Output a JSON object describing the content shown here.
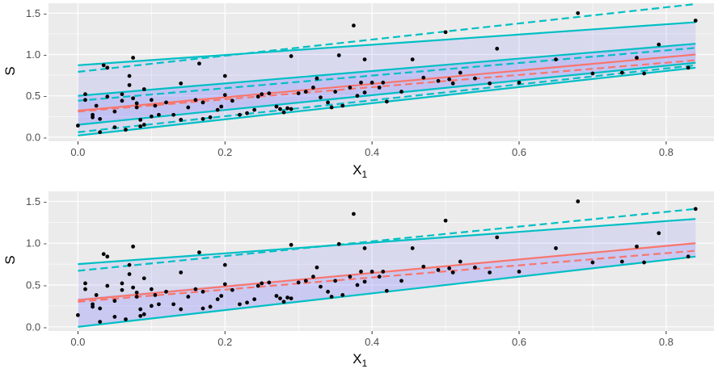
{
  "chart_data": [
    {
      "type": "scatter",
      "title": "",
      "xlabel": "X",
      "xlabel_subscript": "1",
      "ylabel": "S",
      "xlim": [
        -0.04,
        0.865
      ],
      "ylim": [
        -0.05,
        1.62
      ],
      "xticks": [
        0.0,
        0.2,
        0.4,
        0.6,
        0.8
      ],
      "xtick_labels": [
        "0.0",
        "0.2",
        "0.4",
        "0.6",
        "0.8"
      ],
      "yticks": [
        0.0,
        0.5,
        1.0,
        1.5
      ],
      "ytick_labels": [
        "0.0 -",
        "0.5 -",
        "1.0 -",
        "1.5 -"
      ],
      "grid": true,
      "colors": {
        "panel": "#ebebeb",
        "grid": "#ffffff",
        "points": "#000000",
        "fit_line": "#f8766d",
        "band_line": "#00bfc4",
        "band_fill": "#8a8aff"
      },
      "bands": [
        {
          "lower": [
            0.15,
            0.9
          ],
          "upper": [
            0.5,
            1.13
          ],
          "opacity": 0.28
        },
        {
          "lower": [
            0.02,
            0.84
          ],
          "upper": [
            0.87,
            1.39
          ],
          "opacity": 0.18
        }
      ],
      "series": [
        {
          "style": "solid",
          "color": "#00bfc4",
          "x": [
            0,
            0.84
          ],
          "y": [
            0.02,
            0.84
          ]
        },
        {
          "style": "solid",
          "color": "#00bfc4",
          "x": [
            0,
            0.84
          ],
          "y": [
            0.15,
            0.9
          ]
        },
        {
          "style": "solid",
          "color": "#00bfc4",
          "x": [
            0,
            0.84
          ],
          "y": [
            0.5,
            1.13
          ]
        },
        {
          "style": "solid",
          "color": "#00bfc4",
          "x": [
            0,
            0.84
          ],
          "y": [
            0.87,
            1.39
          ]
        },
        {
          "style": "dashed",
          "color": "#00bfc4",
          "x": [
            0,
            0.84
          ],
          "y": [
            0.06,
            0.87
          ]
        },
        {
          "style": "dashed",
          "color": "#00bfc4",
          "x": [
            0,
            0.84
          ],
          "y": [
            0.44,
            1.08
          ]
        },
        {
          "style": "dashed",
          "color": "#00bfc4",
          "x": [
            0,
            0.84
          ],
          "y": [
            0.79,
            1.61
          ]
        },
        {
          "style": "solid",
          "color": "#f8766d",
          "x": [
            0,
            0.84
          ],
          "y": [
            0.32,
            1.0
          ]
        },
        {
          "style": "dashed",
          "color": "#f8766d",
          "x": [
            0,
            0.84
          ],
          "y": [
            0.31,
            0.93
          ]
        }
      ],
      "points": [
        [
          0.0,
          0.14
        ],
        [
          0.01,
          0.45
        ],
        [
          0.01,
          0.52
        ],
        [
          0.02,
          0.24
        ],
        [
          0.02,
          0.27
        ],
        [
          0.03,
          0.06
        ],
        [
          0.025,
          0.38
        ],
        [
          0.03,
          0.22
        ],
        [
          0.035,
          0.87
        ],
        [
          0.04,
          0.84
        ],
        [
          0.04,
          0.49
        ],
        [
          0.05,
          0.31
        ],
        [
          0.05,
          0.12
        ],
        [
          0.06,
          0.44
        ],
        [
          0.06,
          0.52
        ],
        [
          0.065,
          0.09
        ],
        [
          0.07,
          0.74
        ],
        [
          0.07,
          0.63
        ],
        [
          0.075,
          0.96
        ],
        [
          0.075,
          0.47
        ],
        [
          0.08,
          0.41
        ],
        [
          0.08,
          0.36
        ],
        [
          0.085,
          0.21
        ],
        [
          0.09,
          0.58
        ],
        [
          0.085,
          0.13
        ],
        [
          0.09,
          0.15
        ],
        [
          0.1,
          0.45
        ],
        [
          0.1,
          0.25
        ],
        [
          0.105,
          0.38
        ],
        [
          0.11,
          0.27
        ],
        [
          0.12,
          0.42
        ],
        [
          0.13,
          0.27
        ],
        [
          0.14,
          0.21
        ],
        [
          0.14,
          0.65
        ],
        [
          0.15,
          0.36
        ],
        [
          0.16,
          0.45
        ],
        [
          0.165,
          0.89
        ],
        [
          0.17,
          0.22
        ],
        [
          0.17,
          0.42
        ],
        [
          0.18,
          0.24
        ],
        [
          0.19,
          0.33
        ],
        [
          0.195,
          0.37
        ],
        [
          0.2,
          0.51
        ],
        [
          0.2,
          0.74
        ],
        [
          0.21,
          0.44
        ],
        [
          0.22,
          0.27
        ],
        [
          0.23,
          0.29
        ],
        [
          0.24,
          0.33
        ],
        [
          0.245,
          0.49
        ],
        [
          0.25,
          0.52
        ],
        [
          0.26,
          0.53
        ],
        [
          0.27,
          0.37
        ],
        [
          0.275,
          0.34
        ],
        [
          0.28,
          0.3
        ],
        [
          0.285,
          0.35
        ],
        [
          0.29,
          0.34
        ],
        [
          0.29,
          0.98
        ],
        [
          0.3,
          0.53
        ],
        [
          0.31,
          0.55
        ],
        [
          0.32,
          0.6
        ],
        [
          0.325,
          0.71
        ],
        [
          0.33,
          0.48
        ],
        [
          0.34,
          0.42
        ],
        [
          0.345,
          0.36
        ],
        [
          0.35,
          0.55
        ],
        [
          0.355,
          0.99
        ],
        [
          0.36,
          0.38
        ],
        [
          0.37,
          0.6
        ],
        [
          0.375,
          1.35
        ],
        [
          0.38,
          0.5
        ],
        [
          0.385,
          0.66
        ],
        [
          0.39,
          0.54
        ],
        [
          0.39,
          0.94
        ],
        [
          0.4,
          0.66
        ],
        [
          0.41,
          0.6
        ],
        [
          0.415,
          0.66
        ],
        [
          0.42,
          0.43
        ],
        [
          0.44,
          0.55
        ],
        [
          0.455,
          0.94
        ],
        [
          0.47,
          0.72
        ],
        [
          0.49,
          0.68
        ],
        [
          0.5,
          1.27
        ],
        [
          0.505,
          0.7
        ],
        [
          0.51,
          0.65
        ],
        [
          0.52,
          0.78
        ],
        [
          0.54,
          0.71
        ],
        [
          0.56,
          0.65
        ],
        [
          0.57,
          1.07
        ],
        [
          0.6,
          0.66
        ],
        [
          0.65,
          0.94
        ],
        [
          0.68,
          1.5
        ],
        [
          0.7,
          0.77
        ],
        [
          0.74,
          0.78
        ],
        [
          0.76,
          0.96
        ],
        [
          0.77,
          0.77
        ],
        [
          0.79,
          1.12
        ],
        [
          0.83,
          0.84
        ],
        [
          0.84,
          1.41
        ]
      ]
    },
    {
      "type": "scatter",
      "title": "",
      "xlabel": "X",
      "xlabel_subscript": "1",
      "ylabel": "S",
      "xlim": [
        -0.04,
        0.865
      ],
      "ylim": [
        -0.05,
        1.62
      ],
      "xticks": [
        0.0,
        0.2,
        0.4,
        0.6,
        0.8
      ],
      "xtick_labels": [
        "0.0",
        "0.2",
        "0.4",
        "0.6",
        "0.8"
      ],
      "yticks": [
        0.0,
        0.5,
        1.0,
        1.5
      ],
      "ytick_labels": [
        "0.0 -",
        "0.5 -",
        "1.0 -",
        "1.5 -"
      ],
      "grid": true,
      "colors": {
        "panel": "#ebebeb",
        "grid": "#ffffff",
        "points": "#000000",
        "fit_line": "#f8766d",
        "band_line": "#00bfc4",
        "band_fill": "#8a8aff"
      },
      "bands": [
        {
          "lower": [
            0.0,
            0.84
          ],
          "upper": [
            0.34,
            1.0
          ],
          "opacity": 0.35
        },
        {
          "lower": [
            0.34,
            1.0
          ],
          "upper": [
            0.75,
            1.29
          ],
          "opacity": 0.18
        }
      ],
      "series": [
        {
          "style": "solid",
          "color": "#00bfc4",
          "x": [
            0,
            0.84
          ],
          "y": [
            0.0,
            0.84
          ]
        },
        {
          "style": "solid",
          "color": "#00bfc4",
          "x": [
            0,
            0.84
          ],
          "y": [
            0.75,
            1.29
          ]
        },
        {
          "style": "dashed",
          "color": "#00bfc4",
          "x": [
            0,
            0.84
          ],
          "y": [
            0.67,
            1.41
          ]
        },
        {
          "style": "solid",
          "color": "#f8766d",
          "x": [
            0,
            0.84
          ],
          "y": [
            0.32,
            1.0
          ]
        },
        {
          "style": "dashed",
          "color": "#f8766d",
          "x": [
            0,
            0.84
          ],
          "y": [
            0.3,
            0.91
          ]
        }
      ],
      "points": [
        [
          0.0,
          0.14
        ],
        [
          0.01,
          0.45
        ],
        [
          0.01,
          0.52
        ],
        [
          0.02,
          0.24
        ],
        [
          0.02,
          0.27
        ],
        [
          0.03,
          0.06
        ],
        [
          0.025,
          0.38
        ],
        [
          0.03,
          0.22
        ],
        [
          0.035,
          0.87
        ],
        [
          0.04,
          0.84
        ],
        [
          0.04,
          0.49
        ],
        [
          0.05,
          0.31
        ],
        [
          0.05,
          0.12
        ],
        [
          0.06,
          0.44
        ],
        [
          0.06,
          0.52
        ],
        [
          0.065,
          0.09
        ],
        [
          0.07,
          0.74
        ],
        [
          0.07,
          0.63
        ],
        [
          0.075,
          0.96
        ],
        [
          0.075,
          0.47
        ],
        [
          0.08,
          0.41
        ],
        [
          0.08,
          0.36
        ],
        [
          0.085,
          0.21
        ],
        [
          0.09,
          0.58
        ],
        [
          0.085,
          0.13
        ],
        [
          0.09,
          0.15
        ],
        [
          0.1,
          0.45
        ],
        [
          0.1,
          0.25
        ],
        [
          0.105,
          0.38
        ],
        [
          0.11,
          0.27
        ],
        [
          0.12,
          0.42
        ],
        [
          0.13,
          0.27
        ],
        [
          0.14,
          0.21
        ],
        [
          0.14,
          0.65
        ],
        [
          0.15,
          0.36
        ],
        [
          0.16,
          0.45
        ],
        [
          0.165,
          0.89
        ],
        [
          0.17,
          0.22
        ],
        [
          0.17,
          0.42
        ],
        [
          0.18,
          0.24
        ],
        [
          0.19,
          0.33
        ],
        [
          0.195,
          0.37
        ],
        [
          0.2,
          0.51
        ],
        [
          0.2,
          0.74
        ],
        [
          0.21,
          0.44
        ],
        [
          0.22,
          0.27
        ],
        [
          0.23,
          0.29
        ],
        [
          0.24,
          0.33
        ],
        [
          0.245,
          0.49
        ],
        [
          0.25,
          0.52
        ],
        [
          0.26,
          0.53
        ],
        [
          0.27,
          0.37
        ],
        [
          0.275,
          0.34
        ],
        [
          0.28,
          0.3
        ],
        [
          0.285,
          0.35
        ],
        [
          0.29,
          0.34
        ],
        [
          0.29,
          0.98
        ],
        [
          0.3,
          0.53
        ],
        [
          0.31,
          0.55
        ],
        [
          0.32,
          0.6
        ],
        [
          0.325,
          0.71
        ],
        [
          0.33,
          0.48
        ],
        [
          0.34,
          0.42
        ],
        [
          0.345,
          0.36
        ],
        [
          0.35,
          0.55
        ],
        [
          0.355,
          0.99
        ],
        [
          0.36,
          0.38
        ],
        [
          0.37,
          0.6
        ],
        [
          0.375,
          1.35
        ],
        [
          0.38,
          0.5
        ],
        [
          0.385,
          0.66
        ],
        [
          0.39,
          0.54
        ],
        [
          0.39,
          0.94
        ],
        [
          0.4,
          0.66
        ],
        [
          0.41,
          0.6
        ],
        [
          0.415,
          0.66
        ],
        [
          0.42,
          0.43
        ],
        [
          0.44,
          0.55
        ],
        [
          0.455,
          0.94
        ],
        [
          0.47,
          0.72
        ],
        [
          0.49,
          0.68
        ],
        [
          0.5,
          1.27
        ],
        [
          0.505,
          0.7
        ],
        [
          0.51,
          0.65
        ],
        [
          0.52,
          0.78
        ],
        [
          0.54,
          0.71
        ],
        [
          0.56,
          0.65
        ],
        [
          0.57,
          1.07
        ],
        [
          0.6,
          0.66
        ],
        [
          0.65,
          0.94
        ],
        [
          0.68,
          1.5
        ],
        [
          0.7,
          0.77
        ],
        [
          0.74,
          0.78
        ],
        [
          0.76,
          0.96
        ],
        [
          0.77,
          0.77
        ],
        [
          0.79,
          1.12
        ],
        [
          0.83,
          0.84
        ],
        [
          0.84,
          1.41
        ]
      ]
    }
  ]
}
